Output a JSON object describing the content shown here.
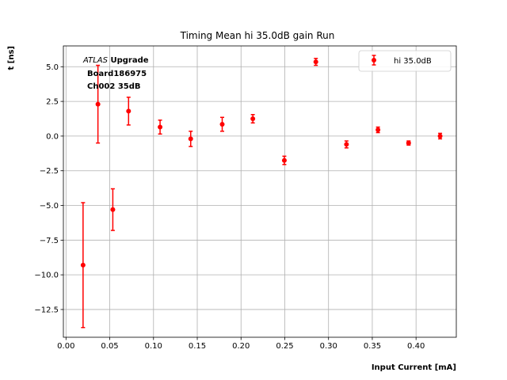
{
  "chart_data": {
    "type": "scatter",
    "title": "Timing Mean hi 35.0dB gain Run",
    "xlabel": "Input Current [mA]",
    "ylabel": "t [ns]",
    "xlim": [
      -0.003,
      0.446
    ],
    "ylim": [
      -14.5,
      6.5
    ],
    "xticks": [
      0.0,
      0.05,
      0.1,
      0.15,
      0.2,
      0.25,
      0.3,
      0.35,
      0.4
    ],
    "xtick_labels": [
      "0.00",
      "0.05",
      "0.10",
      "0.15",
      "0.20",
      "0.25",
      "0.30",
      "0.35",
      "0.40"
    ],
    "yticks": [
      5.0,
      2.5,
      0.0,
      -2.5,
      -5.0,
      -7.5,
      -10.0,
      -12.5
    ],
    "ytick_labels": [
      "5.0",
      "2.5",
      "0.0",
      "−2.5",
      "−5.0",
      "−7.5",
      "−10.0",
      "−12.5"
    ],
    "grid": true,
    "legend_position": "top-right",
    "annotation": {
      "atlas": "ATLAS",
      "upgrade": "Upgrade",
      "board": "Board186975",
      "channel": "Ch002 35dB"
    },
    "series": [
      {
        "name": "hi 35.0dB",
        "color": "#ff0000",
        "marker": "circle",
        "x": [
          0.0195,
          0.0365,
          0.0535,
          0.0715,
          0.1075,
          0.1425,
          0.1785,
          0.2135,
          0.2495,
          0.2855,
          0.3205,
          0.3565,
          0.3915,
          0.4275
        ],
        "y": [
          -9.3,
          2.3,
          -5.3,
          1.8,
          0.65,
          -0.2,
          0.85,
          1.25,
          -1.75,
          5.35,
          -0.6,
          0.45,
          -0.5,
          0.0
        ],
        "yerr": [
          4.5,
          2.8,
          1.5,
          1.0,
          0.5,
          0.55,
          0.5,
          0.3,
          0.3,
          0.25,
          0.25,
          0.2,
          0.15,
          0.2
        ]
      }
    ]
  }
}
